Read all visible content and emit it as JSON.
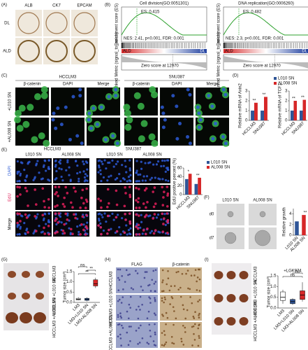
{
  "panels": {
    "a": {
      "label": "(A)",
      "columns": [
        "ALB",
        "CK7",
        "EPCAM"
      ],
      "rows": [
        "DL",
        "ALD"
      ]
    },
    "b": {
      "label": "(B)",
      "plots": [
        {
          "title": "Cell division(GO:0051301)",
          "es": "ES: 0.415",
          "stats": "NES: 2.41, p<0.001, FDR: 0.001"
        },
        {
          "title": "DNA replication(GO:0006260)",
          "es": "ES: 0.482",
          "stats": "NES: 2.3, p<0.001, FDR: 0.001"
        }
      ],
      "y_label": "Enrichment score (ES)",
      "metric_label": "Ranked Metric (signal_to_noise)",
      "left": "ALD",
      "right": "DL",
      "zero": "Zero score at 12970"
    },
    "c": {
      "label": "(C)",
      "groups": [
        "HCCLM3",
        "SNU387"
      ],
      "columns": [
        "β-catenin",
        "DAPI",
        "Merge"
      ],
      "rows": [
        "+L010 SN",
        "+AL008 SN"
      ]
    },
    "d": {
      "label": "(D)"
    },
    "e": {
      "label": "(E)",
      "groups": [
        "HCCLM3",
        "SNU387"
      ],
      "columns": [
        "L010 SN",
        "AL008 SN"
      ],
      "rows": [
        "DAPI",
        "EdU",
        "Merge"
      ]
    },
    "f": {
      "label": "(F)",
      "columns": [
        "L010 SN",
        "AL008 SN"
      ],
      "rows": [
        "d0",
        "d7"
      ]
    },
    "g": {
      "label": "(G)",
      "rows": [
        "HCCLM3",
        "HCCLM3 +L010 SN",
        "HCCLM3 +AL008 SN"
      ]
    },
    "h": {
      "label": "(H)",
      "columns": [
        "FLAG",
        "β-catenin"
      ],
      "rows": [
        "HCCLM3",
        "HCCLM3 +L010 SN",
        "HCCLM3 +AL008 SN"
      ]
    },
    "i": {
      "label": "(I)",
      "rows": [
        "HCCLM3",
        "HCCLM3 +L010 SN",
        "HCCLM3 +AL008 SN"
      ]
    }
  },
  "chart_data": [
    {
      "type": "bar",
      "ylabel": "Relative mRNA of Axin2",
      "categories": [
        "HCCLM3",
        "SNU387"
      ],
      "series": [
        {
          "name": "L010 SN",
          "color": "#2f5597",
          "values": [
            1,
            1
          ]
        },
        {
          "name": "AL008 SN",
          "color": "#d62728",
          "values": [
            1.8,
            2.4
          ]
        }
      ],
      "ylim": [
        0,
        3
      ],
      "yticks": [
        0,
        1,
        2,
        3
      ],
      "annotations": [
        "**",
        "**"
      ]
    },
    {
      "type": "bar",
      "ylabel": "Relative mRNA of TCF1",
      "categories": [
        "HCCLM3",
        "SNU387"
      ],
      "series": [
        {
          "color": "#2f5597",
          "values": [
            1,
            1
          ]
        },
        {
          "color": "#d62728",
          "values": [
            2,
            2.1
          ]
        }
      ],
      "ylim": [
        0,
        3
      ],
      "yticks": [
        0,
        1,
        2,
        3
      ],
      "annotations": [
        "**",
        "**"
      ]
    },
    {
      "type": "bar",
      "ylabel": "EdU positive percent (%)",
      "categories": [
        "HCCLM3",
        "SNU387"
      ],
      "series": [
        {
          "name": "L010 SN",
          "color": "#2f5597",
          "values": [
            35,
            24
          ]
        },
        {
          "name": "AL008 SN",
          "color": "#d62728",
          "values": [
            47,
            38
          ]
        }
      ],
      "ylim": [
        0,
        60
      ],
      "yticks": [
        0,
        20,
        40,
        60
      ],
      "annotations": [
        "*",
        "**"
      ]
    },
    {
      "type": "bar",
      "ylabel": "Relative growth",
      "categories": [
        "L010 SN",
        "AL008 SN"
      ],
      "values": [
        2.6,
        3.8
      ],
      "colors": [
        "#2f5597",
        "#d62728"
      ],
      "ylim": [
        0,
        5
      ],
      "yticks": [
        0,
        2,
        4
      ],
      "annotations": [
        "**"
      ]
    },
    {
      "type": "box",
      "ylabel": "Tumor size (cm³)",
      "categories": [
        "LM3",
        "LM3+L010 SN",
        "LM3+AL008 SN"
      ],
      "boxes": [
        {
          "min": 0.1,
          "q1": 0.12,
          "median": 0.15,
          "q3": 0.2,
          "max": 0.25
        },
        {
          "min": 0.05,
          "q1": 0.1,
          "median": 0.15,
          "q3": 0.2,
          "max": 0.25
        },
        {
          "min": 0.7,
          "q1": 0.8,
          "median": 0.9,
          "q3": 1.1,
          "max": 1.2
        }
      ],
      "colors": [
        "#ffffff",
        "#2f5597",
        "#d62728"
      ],
      "ylim": [
        0,
        1.5
      ],
      "yticks": [
        {
          "value": 0,
          "label": "0.0"
        },
        0.5,
        {
          "value": 1,
          "label": "1.0"
        },
        1.5
      ],
      "annotations": [
        "ns",
        "**",
        "**"
      ]
    },
    {
      "type": "box",
      "title": "+LGK974",
      "ylabel": "Tumor size (cm³)",
      "categories": [
        "LM3",
        "LM3+L010 SN",
        "LM3+AL008 SN"
      ],
      "boxes": [
        {
          "min": 0.2,
          "q1": 0.35,
          "median": 0.5,
          "q3": 0.75,
          "max": 0.85
        },
        {
          "min": 0.15,
          "q1": 0.2,
          "median": 0.3,
          "q3": 0.4,
          "max": 0.45
        },
        {
          "min": 0.3,
          "q1": 0.4,
          "median": 0.6,
          "q3": 0.8,
          "max": 1.2
        }
      ],
      "colors": [
        "#ffffff",
        "#2f5597",
        "#d62728"
      ],
      "ylim": [
        0,
        1.5
      ],
      "yticks": [
        {
          "value": 0,
          "label": "0.0"
        },
        0.5,
        {
          "value": 1,
          "label": "1.0"
        },
        1.5
      ],
      "annotations": [
        "ns",
        "ns"
      ]
    }
  ]
}
